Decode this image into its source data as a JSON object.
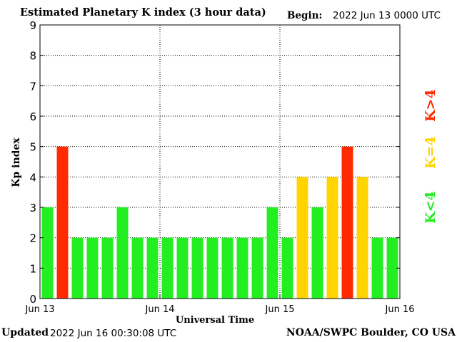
{
  "header": {
    "title": "Estimated Planetary K index (3 hour data)",
    "begin_label": "Begin:",
    "begin_value": "2022 Jun 13 0000 UTC"
  },
  "footer": {
    "updated_label": "Updated",
    "updated_value": "2022 Jun 16 00:30:08 UTC",
    "credit": "NOAA/SWPC Boulder, CO USA"
  },
  "legend": {
    "items": [
      {
        "label": "K>4",
        "color": "#ff2a00"
      },
      {
        "label": "K=4",
        "color": "#ffd400"
      },
      {
        "label": "K<4",
        "color": "#22ee22"
      }
    ]
  },
  "chart_data": {
    "type": "bar",
    "xlabel": "Universal Time",
    "ylabel": "Kp index",
    "ylim": [
      0,
      9
    ],
    "yticks": [
      0,
      1,
      2,
      3,
      4,
      5,
      6,
      7,
      8,
      9
    ],
    "xticks": [
      "Jun 13",
      "Jun 14",
      "Jun 15",
      "Jun 16"
    ],
    "grid": true,
    "values": [
      3,
      5,
      2,
      2,
      2,
      3,
      2,
      2,
      2,
      2,
      2,
      2,
      2,
      2,
      2,
      3,
      2,
      4,
      3,
      4,
      5,
      4,
      2,
      2
    ],
    "colors": {
      "below": "#22ee22",
      "equal": "#ffd400",
      "above": "#ff2a00"
    }
  }
}
